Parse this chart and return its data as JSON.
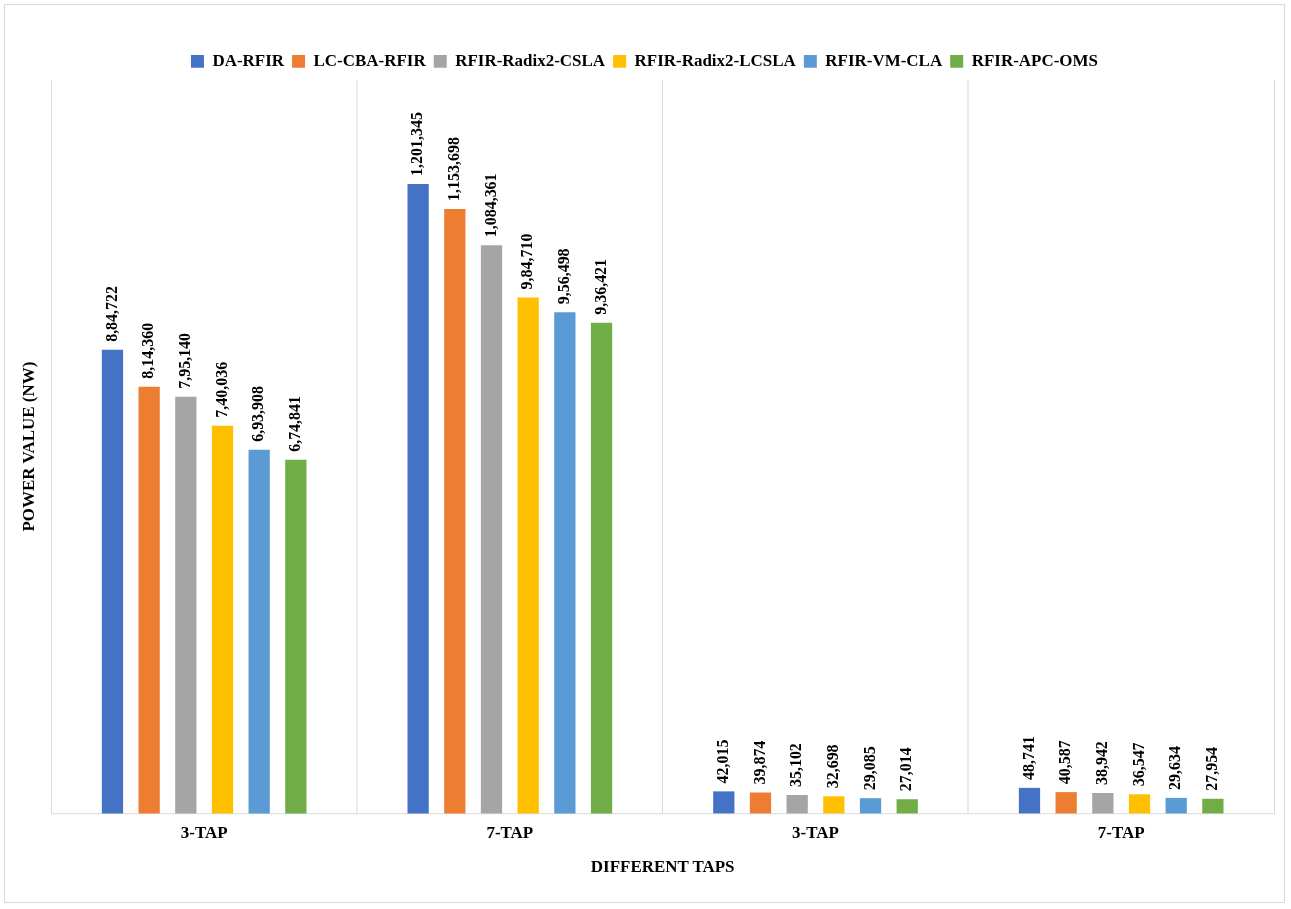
{
  "chart_data": {
    "type": "bar",
    "categories": [
      "3-TAP",
      "7-TAP",
      "3-TAP",
      "7-TAP"
    ],
    "xlabel": "DIFFERENT TAPS",
    "ylabel": "POWER VALUE (NW)",
    "ylim": [
      0,
      1400000
    ],
    "tick_labels": "x",
    "grid": "x",
    "legend": "top",
    "series": [
      {
        "name": "DA-RFIR",
        "color": "#4472c4",
        "values": [
          884722,
          1201345,
          42015,
          48741
        ],
        "value_labels": [
          "8,84,722",
          "1,201,345",
          "42,015",
          "48,741"
        ]
      },
      {
        "name": "LC-CBA-RFIR",
        "color": "#ed7d31",
        "values": [
          814360,
          1153698,
          39874,
          40587
        ],
        "value_labels": [
          "8,14,360",
          "1,153,698",
          "39,874",
          "40,587"
        ]
      },
      {
        "name": "RFIR-Radix2-CSLA",
        "color": "#a5a5a5",
        "values": [
          795140,
          1084361,
          35102,
          38942
        ],
        "value_labels": [
          "7,95,140",
          "1,084,361",
          "35,102",
          "38,942"
        ]
      },
      {
        "name": "RFIR-Radix2-LCSLA",
        "color": "#ffc000",
        "values": [
          740036,
          984710,
          32698,
          36547
        ],
        "value_labels": [
          "7,40,036",
          "9,84,710",
          "32,698",
          "36,547"
        ]
      },
      {
        "name": "RFIR-VM-CLA",
        "color": "#5b9bd5",
        "values": [
          693908,
          956498,
          29085,
          29634
        ],
        "value_labels": [
          "6,93,908",
          "9,56,498",
          "29,085",
          "29,634"
        ]
      },
      {
        "name": "RFIR-APC-OMS",
        "color": "#70ad47",
        "values": [
          674841,
          936421,
          27014,
          27954
        ],
        "value_labels": [
          "6,74,841",
          "9,36,421",
          "27,014",
          "27,954"
        ]
      }
    ]
  }
}
